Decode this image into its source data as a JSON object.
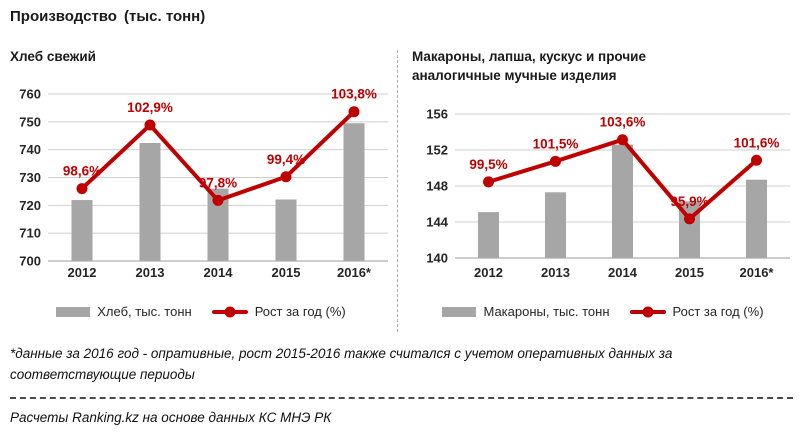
{
  "header": {
    "title": "Производство",
    "unit": "(тыс. тонн)"
  },
  "colors": {
    "bar": "#A6A6A6",
    "line": "#C00000",
    "grid": "#CFCFCF",
    "axis_line": "#9B9B9B",
    "tick_text": "#262626",
    "title_text": "#1A1A1A"
  },
  "chart_data": [
    {
      "type": "bar",
      "combo": "bar+line",
      "title": "Хлеб свежий",
      "categories": [
        "2012",
        "2013",
        "2014",
        "2015",
        "2016*"
      ],
      "series": [
        {
          "name": "Хлеб, тыс. тонн",
          "type": "bar",
          "values": [
            721.9,
            742.4,
            726.0,
            722.1,
            749.5
          ]
        },
        {
          "name": "Рост за год (%)",
          "type": "line",
          "values": [
            98.6,
            102.9,
            97.8,
            99.4,
            103.8
          ],
          "value_labels": [
            "98,6%",
            "102,9%",
            "97,8%",
            "99,4%",
            "103,8%"
          ]
        }
      ],
      "ylim": [
        700,
        760
      ],
      "yticks": [
        700,
        710,
        720,
        730,
        740,
        750,
        760
      ],
      "growth_axis_range": [
        93.7,
        105.0
      ],
      "grid": true,
      "legend_position": "bottom",
      "legend": [
        "Хлеб, тыс. тонн",
        "Рост за год (%)"
      ]
    },
    {
      "type": "bar",
      "combo": "bar+line",
      "title": "Макароны, лапша, кускус и прочие\nаналогичные мучные изделия",
      "categories": [
        "2012",
        "2013",
        "2014",
        "2015",
        "2016*"
      ],
      "series": [
        {
          "name": "Макароны, тыс. тонн",
          "type": "bar",
          "values": [
            145.1,
            147.3,
            152.6,
            146.3,
            148.7
          ]
        },
        {
          "name": "Рост за год (%)",
          "type": "line",
          "values": [
            99.5,
            101.5,
            103.6,
            95.9,
            101.6
          ],
          "value_labels": [
            "99,5%",
            "101,5%",
            "103,6%",
            "95,9%",
            "101,6%"
          ]
        }
      ],
      "ylim": [
        140,
        156
      ],
      "yticks": [
        140,
        144,
        148,
        152,
        156
      ],
      "growth_axis_range": [
        92.1,
        106.1
      ],
      "grid": true,
      "legend_position": "bottom",
      "legend": [
        "Макароны, тыс. тонн",
        "Рост за год (%)"
      ]
    }
  ],
  "footer": {
    "note": "*данные за 2016 год - опративные, рост 2015-2016 также считался с учетом оперативных данных за соответствующие периоды",
    "source": "Расчеты Ranking.kz на основе данных КС МНЭ РК"
  }
}
